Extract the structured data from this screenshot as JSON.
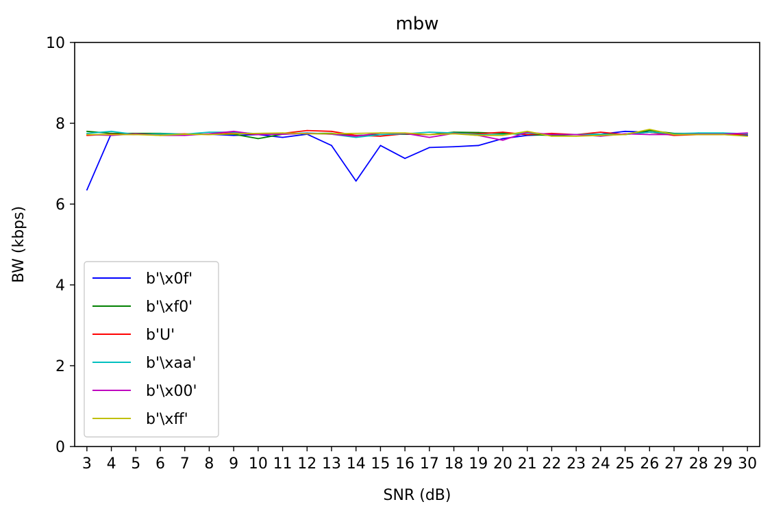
{
  "chart_data": {
    "type": "line",
    "title": "mbw",
    "xlabel": "SNR (dB)",
    "ylabel": "BW (kbps)",
    "ylim": [
      0,
      10
    ],
    "yticks": [
      0,
      2,
      4,
      6,
      8,
      10
    ],
    "grid": false,
    "legend_position": "lower-left",
    "x": [
      3,
      4,
      5,
      6,
      7,
      8,
      9,
      10,
      11,
      12,
      13,
      14,
      15,
      16,
      17,
      18,
      19,
      20,
      21,
      22,
      23,
      24,
      25,
      26,
      27,
      28,
      29,
      30
    ],
    "series": [
      {
        "name": "b'\\x0f'",
        "color": "#0000ff",
        "values": [
          6.35,
          7.75,
          7.72,
          7.72,
          7.73,
          7.73,
          7.7,
          7.72,
          7.65,
          7.73,
          7.45,
          6.57,
          7.45,
          7.13,
          7.4,
          7.42,
          7.45,
          7.62,
          7.7,
          7.72,
          7.72,
          7.73,
          7.8,
          7.78,
          7.72,
          7.72,
          7.72,
          7.7
        ]
      },
      {
        "name": "b'\\xf0'",
        "color": "#008000",
        "values": [
          7.8,
          7.75,
          7.75,
          7.75,
          7.73,
          7.73,
          7.73,
          7.62,
          7.73,
          7.75,
          7.75,
          7.7,
          7.72,
          7.73,
          7.72,
          7.78,
          7.77,
          7.75,
          7.72,
          7.7,
          7.72,
          7.73,
          7.73,
          7.82,
          7.75,
          7.75,
          7.75,
          7.73
        ]
      },
      {
        "name": "b'U'",
        "color": "#ff0000",
        "values": [
          7.7,
          7.73,
          7.72,
          7.72,
          7.74,
          7.72,
          7.76,
          7.72,
          7.75,
          7.82,
          7.8,
          7.7,
          7.68,
          7.74,
          7.72,
          7.75,
          7.74,
          7.78,
          7.72,
          7.75,
          7.72,
          7.78,
          7.72,
          7.78,
          7.7,
          7.72,
          7.72,
          7.73
        ]
      },
      {
        "name": "b'\\xaa'",
        "color": "#00bfbf",
        "values": [
          7.75,
          7.8,
          7.72,
          7.74,
          7.73,
          7.78,
          7.78,
          7.74,
          7.74,
          7.76,
          7.73,
          7.65,
          7.72,
          7.74,
          7.78,
          7.76,
          7.72,
          7.72,
          7.76,
          7.72,
          7.72,
          7.73,
          7.72,
          7.78,
          7.74,
          7.76,
          7.76,
          7.74
        ]
      },
      {
        "name": "b'\\x00'",
        "color": "#bf00bf",
        "values": [
          7.72,
          7.7,
          7.74,
          7.7,
          7.7,
          7.74,
          7.8,
          7.72,
          7.73,
          7.75,
          7.73,
          7.68,
          7.76,
          7.75,
          7.65,
          7.75,
          7.7,
          7.58,
          7.78,
          7.72,
          7.72,
          7.68,
          7.74,
          7.72,
          7.72,
          7.73,
          7.73,
          7.76
        ]
      },
      {
        "name": "b'\\xff'",
        "color": "#bfbf00",
        "values": [
          7.72,
          7.72,
          7.72,
          7.7,
          7.73,
          7.72,
          7.74,
          7.75,
          7.76,
          7.74,
          7.74,
          7.75,
          7.76,
          7.76,
          7.72,
          7.74,
          7.7,
          7.7,
          7.8,
          7.68,
          7.68,
          7.7,
          7.72,
          7.85,
          7.72,
          7.72,
          7.72,
          7.68
        ]
      }
    ]
  }
}
